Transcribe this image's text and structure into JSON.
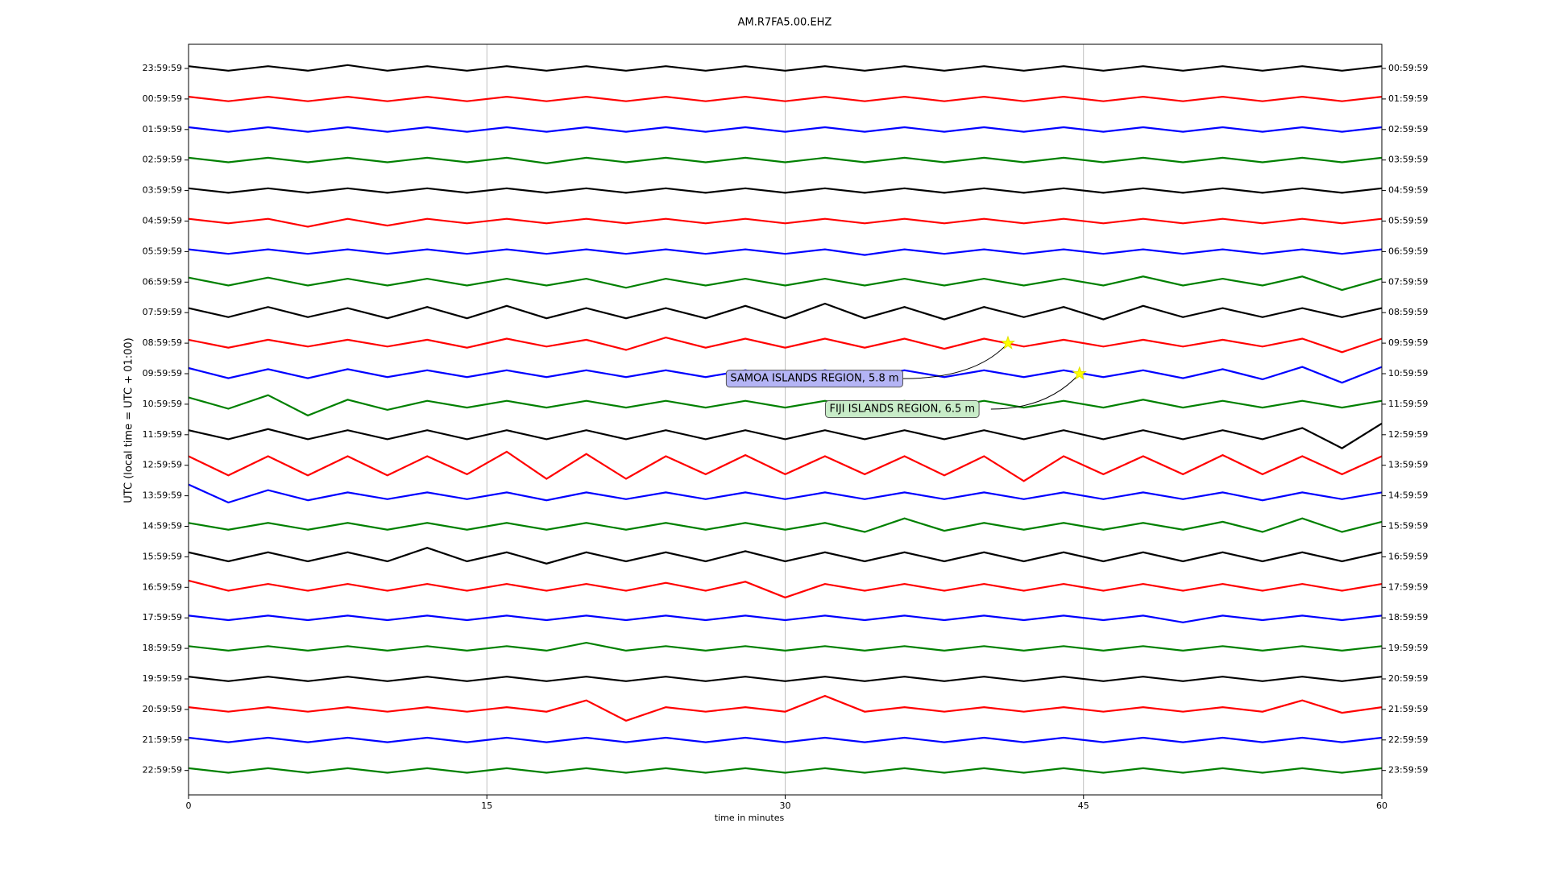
{
  "chart_data": {
    "type": "dayplot",
    "title": "AM.R7FA5.00.EHZ",
    "x_label": "time in minutes",
    "y_label": "UTC (local time = UTC + 01:00)",
    "xlim": [
      0,
      60
    ],
    "xticks": [
      0,
      15,
      30,
      45,
      60
    ],
    "grid": true,
    "left_labels": [
      "23:59:59",
      "00:59:59",
      "01:59:59",
      "02:59:59",
      "03:59:59",
      "04:59:59",
      "05:59:59",
      "06:59:59",
      "07:59:59",
      "08:59:59",
      "09:59:59",
      "10:59:59",
      "11:59:59",
      "12:59:59",
      "13:59:59",
      "14:59:59",
      "15:59:59",
      "16:59:59",
      "17:59:59",
      "18:59:59",
      "19:59:59",
      "20:59:59",
      "21:59:59",
      "22:59:59"
    ],
    "right_labels": [
      "00:59:59",
      "01:59:59",
      "02:59:59",
      "03:59:59",
      "04:59:59",
      "05:59:59",
      "06:59:59",
      "07:59:59",
      "08:59:59",
      "09:59:59",
      "10:59:59",
      "11:59:59",
      "12:59:59",
      "13:59:59",
      "14:59:59",
      "15:59:59",
      "16:59:59",
      "17:59:59",
      "18:59:59",
      "19:59:59",
      "20:59:59",
      "21:59:59",
      "22:59:59",
      "23:59:59"
    ],
    "x": [
      0,
      2,
      4,
      6,
      8,
      10,
      12,
      14,
      16,
      18,
      20,
      22,
      24,
      26,
      28,
      30,
      32,
      34,
      36,
      38,
      40,
      42,
      44,
      46,
      48,
      50,
      52,
      54,
      56,
      58,
      60
    ],
    "series": [
      {
        "color": "#000000",
        "values": [
          2,
          2,
          2,
          2,
          3,
          2,
          2,
          2,
          2,
          2,
          2,
          2,
          2,
          2,
          2,
          2,
          2,
          2,
          2,
          2,
          2,
          2,
          2,
          2,
          2,
          2,
          2,
          2,
          2,
          2,
          2
        ]
      },
      {
        "color": "#ff0000",
        "values": [
          2,
          2,
          2,
          2,
          2,
          2,
          2,
          2,
          2,
          2,
          2,
          2,
          2,
          2,
          2,
          2,
          2,
          2,
          2,
          2,
          2,
          2,
          2,
          2,
          2,
          2,
          2,
          2,
          2,
          2,
          2
        ]
      },
      {
        "color": "#0000ff",
        "values": [
          2,
          2,
          2,
          2,
          2,
          2,
          2,
          2,
          2,
          2,
          2,
          2,
          2,
          2,
          2,
          2,
          2,
          2,
          2,
          2,
          2,
          2,
          2,
          2,
          2,
          2,
          2,
          2,
          2,
          2,
          2
        ]
      },
      {
        "color": "#008000",
        "values": [
          2,
          2,
          2,
          2,
          2,
          2,
          2,
          2,
          2,
          3,
          2,
          2,
          2,
          2,
          2,
          2,
          2,
          2,
          2,
          2,
          2,
          2,
          2,
          2,
          2,
          2,
          2,
          2,
          2,
          2,
          2
        ]
      },
      {
        "color": "#000000",
        "values": [
          2,
          2,
          2,
          2,
          2,
          2,
          2,
          2,
          2,
          2,
          2,
          2,
          2,
          2,
          2,
          2,
          2,
          2,
          2,
          2,
          2,
          2,
          2,
          2,
          2,
          2,
          2,
          2,
          2,
          2,
          2
        ]
      },
      {
        "color": "#ff0000",
        "values": [
          2,
          2,
          2,
          5,
          2,
          4,
          2,
          2,
          2,
          2,
          2,
          2,
          2,
          2,
          2,
          2,
          2,
          2,
          2,
          2,
          2,
          2,
          2,
          2,
          2,
          2,
          2,
          2,
          2,
          2,
          2
        ]
      },
      {
        "color": "#0000ff",
        "values": [
          2,
          2,
          2,
          2,
          2,
          2,
          2,
          2,
          2,
          2,
          2,
          2,
          2,
          2,
          2,
          2,
          2,
          3,
          2,
          2,
          2,
          2,
          2,
          2,
          2,
          2,
          2,
          2,
          2,
          2,
          2
        ]
      },
      {
        "color": "#008000",
        "values": [
          4,
          3,
          4,
          3,
          3,
          3,
          3,
          3,
          3,
          3,
          3,
          5,
          3,
          3,
          3,
          3,
          3,
          3,
          3,
          3,
          3,
          3,
          3,
          3,
          5,
          3,
          3,
          3,
          5,
          7,
          3
        ]
      },
      {
        "color": "#000000",
        "values": [
          4,
          4,
          5,
          4,
          4,
          5,
          5,
          5,
          6,
          5,
          4,
          5,
          4,
          5,
          6,
          5,
          8,
          5,
          5,
          6,
          5,
          4,
          5,
          6,
          6,
          4,
          4,
          4,
          4,
          4,
          4
        ]
      },
      {
        "color": "#ff0000",
        "values": [
          3,
          4,
          3,
          3,
          3,
          3,
          3,
          4,
          4,
          3,
          3,
          6,
          5,
          4,
          4,
          4,
          4,
          4,
          4,
          5,
          4,
          3,
          3,
          3,
          3,
          3,
          3,
          3,
          4,
          8,
          4
        ]
      },
      {
        "color": "#0000ff",
        "values": [
          5,
          4,
          4,
          4,
          4,
          3,
          3,
          3,
          3,
          3,
          3,
          3,
          3,
          3,
          3,
          3,
          3,
          3,
          3,
          3,
          3,
          3,
          3,
          3,
          3,
          4,
          4,
          5,
          6,
          8,
          6
        ]
      },
      {
        "color": "#008000",
        "values": [
          6,
          4,
          8,
          10,
          4,
          5,
          3,
          3,
          3,
          3,
          3,
          3,
          3,
          3,
          3,
          3,
          3,
          3,
          3,
          3,
          3,
          3,
          3,
          3,
          4,
          3,
          3,
          3,
          3,
          3,
          3
        ]
      },
      {
        "color": "#000000",
        "values": [
          4,
          4,
          5,
          4,
          4,
          4,
          4,
          4,
          4,
          4,
          4,
          4,
          4,
          4,
          4,
          4,
          4,
          4,
          4,
          4,
          4,
          4,
          4,
          4,
          4,
          4,
          4,
          4,
          6,
          12,
          10
        ]
      },
      {
        "color": "#ff0000",
        "values": [
          8,
          9,
          8,
          9,
          8,
          9,
          8,
          8,
          12,
          12,
          10,
          12,
          8,
          8,
          9,
          8,
          8,
          8,
          8,
          9,
          8,
          14,
          8,
          8,
          8,
          8,
          9,
          8,
          8,
          8,
          8
        ]
      },
      {
        "color": "#0000ff",
        "values": [
          10,
          6,
          5,
          4,
          3,
          3,
          3,
          3,
          3,
          4,
          3,
          3,
          3,
          3,
          3,
          3,
          3,
          3,
          3,
          3,
          3,
          3,
          3,
          3,
          3,
          3,
          3,
          4,
          3,
          3,
          3
        ]
      },
      {
        "color": "#008000",
        "values": [
          3,
          3,
          3,
          3,
          3,
          3,
          3,
          3,
          3,
          3,
          3,
          3,
          3,
          3,
          3,
          3,
          3,
          5,
          7,
          4,
          3,
          3,
          3,
          3,
          3,
          3,
          4,
          5,
          7,
          5,
          4
        ]
      },
      {
        "color": "#000000",
        "values": [
          4,
          4,
          4,
          4,
          4,
          4,
          8,
          4,
          4,
          6,
          4,
          4,
          4,
          4,
          5,
          4,
          4,
          4,
          4,
          4,
          4,
          4,
          4,
          4,
          4,
          4,
          4,
          4,
          4,
          4,
          4
        ]
      },
      {
        "color": "#ff0000",
        "values": [
          6,
          3,
          3,
          3,
          3,
          3,
          3,
          3,
          3,
          3,
          3,
          3,
          4,
          3,
          5,
          9,
          3,
          3,
          3,
          3,
          3,
          3,
          3,
          3,
          3,
          3,
          3,
          3,
          3,
          3,
          3
        ]
      },
      {
        "color": "#0000ff",
        "values": [
          2,
          2,
          2,
          2,
          2,
          2,
          2,
          2,
          2,
          2,
          2,
          2,
          2,
          2,
          2,
          2,
          2,
          2,
          2,
          2,
          2,
          2,
          2,
          2,
          2,
          4,
          2,
          2,
          2,
          2,
          2
        ]
      },
      {
        "color": "#008000",
        "values": [
          2,
          2,
          2,
          2,
          2,
          2,
          2,
          2,
          2,
          2,
          5,
          2,
          2,
          2,
          2,
          2,
          2,
          2,
          2,
          2,
          2,
          2,
          2,
          2,
          2,
          2,
          2,
          2,
          2,
          2,
          2
        ]
      },
      {
        "color": "#000000",
        "values": [
          2,
          2,
          2,
          2,
          2,
          2,
          2,
          2,
          2,
          2,
          2,
          2,
          2,
          2,
          2,
          2,
          2,
          2,
          2,
          2,
          2,
          2,
          2,
          2,
          2,
          2,
          2,
          2,
          2,
          2,
          2
        ]
      },
      {
        "color": "#ff0000",
        "values": [
          2,
          2,
          2,
          2,
          2,
          2,
          2,
          2,
          2,
          2,
          8,
          10,
          2,
          2,
          2,
          2,
          12,
          2,
          2,
          2,
          2,
          2,
          2,
          2,
          2,
          2,
          2,
          2,
          8,
          3,
          2
        ]
      },
      {
        "color": "#0000ff",
        "values": [
          2,
          2,
          2,
          2,
          2,
          2,
          2,
          2,
          2,
          2,
          2,
          2,
          2,
          2,
          2,
          2,
          2,
          2,
          2,
          2,
          2,
          2,
          2,
          2,
          2,
          2,
          2,
          2,
          2,
          2,
          2
        ]
      },
      {
        "color": "#008000",
        "values": [
          2,
          2,
          2,
          2,
          2,
          2,
          2,
          2,
          2,
          2,
          2,
          2,
          2,
          2,
          2,
          2,
          2,
          2,
          2,
          2,
          2,
          2,
          2,
          2,
          2,
          2,
          2,
          2,
          2,
          2,
          2
        ]
      }
    ],
    "events": [
      {
        "label": "SAMOA ISLANDS REGION, 5.8 m",
        "minute": 41.2,
        "row": 9,
        "box_color": "#b4b4f5"
      },
      {
        "label": "FIJI ISLANDS REGION, 6.5 m",
        "minute": 44.8,
        "row": 10,
        "box_color": "#c8ecc8"
      }
    ],
    "star_color": "#ffff00"
  }
}
